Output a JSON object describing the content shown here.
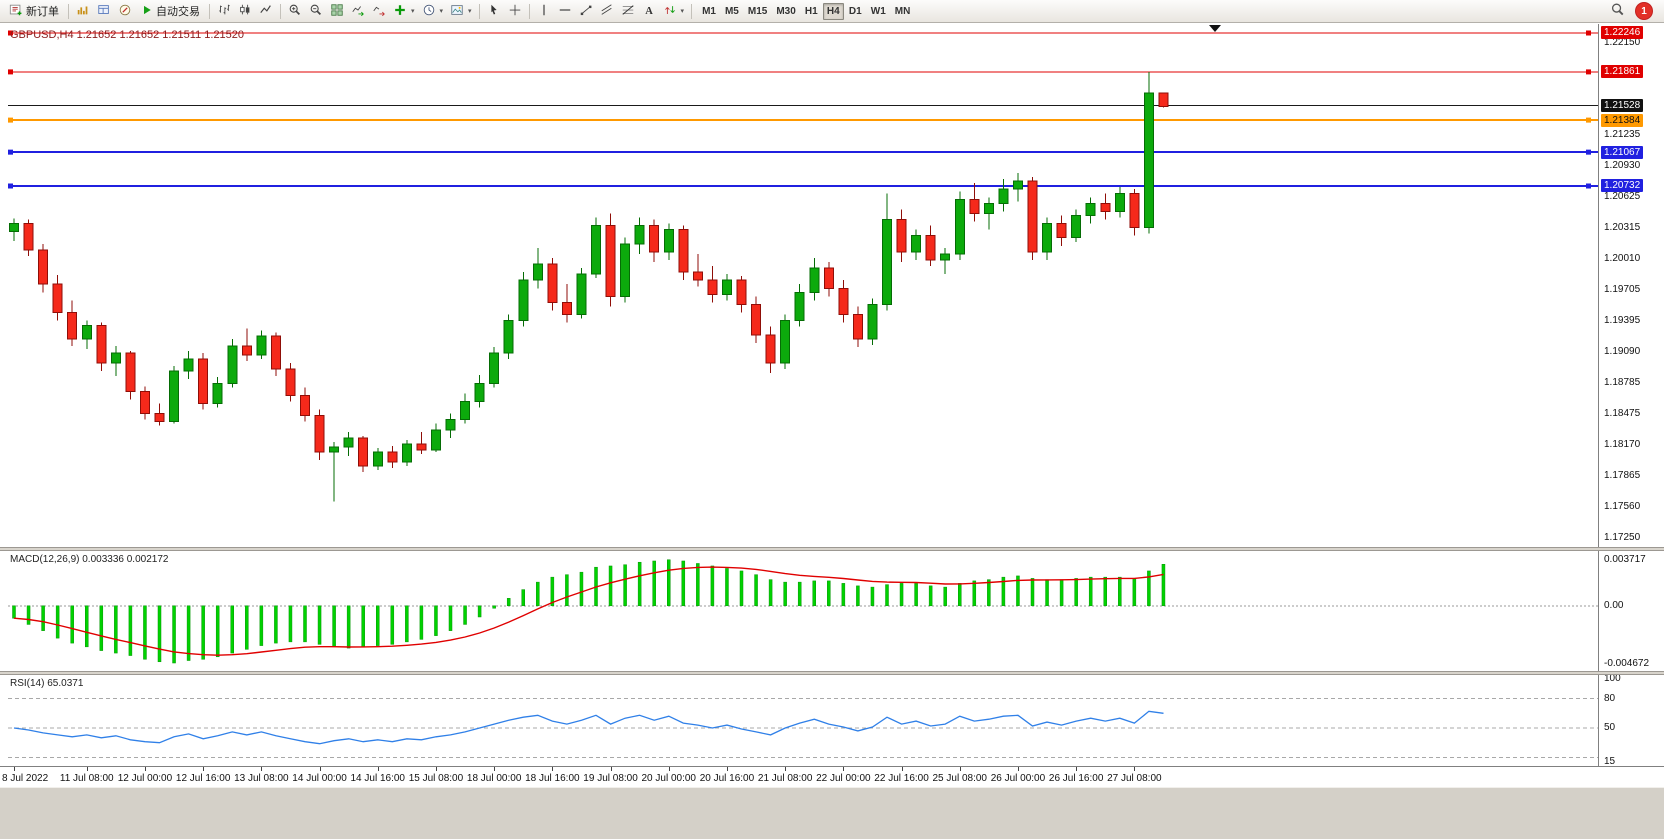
{
  "toolbar": {
    "new_order_label": "新订单",
    "autotrading_label": "自动交易",
    "timeframes": [
      "M1",
      "M5",
      "M15",
      "M30",
      "H1",
      "H4",
      "D1",
      "W1",
      "MN"
    ],
    "active_timeframe": "H4",
    "notification_count": "1"
  },
  "chart": {
    "symbol_header": "GBPUSD,H4 1.21652 1.21652 1.21511 1.21520",
    "colors": {
      "up": "#0caa0c",
      "up_border": "#056c05",
      "down": "#f5291b",
      "down_border": "#8f0e08",
      "macd_hist": "#00d200",
      "macd_signal": "#e00000",
      "rsi_line": "#3080e8",
      "line_red": "#e00000",
      "line_orange": "#ff9900",
      "line_blue": "#2020e0",
      "line_bid": "#1a1a1a"
    }
  },
  "lines": [
    {
      "price": 1.22246,
      "color": "#e00000",
      "width": 1,
      "handles": true
    },
    {
      "price": 1.21861,
      "color": "#e00000",
      "width": 1,
      "handles": true
    },
    {
      "price": 1.21528,
      "color": "#1a1a1a",
      "width": 1,
      "handles": false
    },
    {
      "price": 1.21384,
      "color": "#ff9900",
      "width": 2,
      "handles": true
    },
    {
      "price": 1.21067,
      "color": "#2020e0",
      "width": 2,
      "handles": true
    },
    {
      "price": 1.20732,
      "color": "#2020e0",
      "width": 2,
      "handles": true
    }
  ],
  "price_axis": {
    "ticks": [
      {
        "v": 1.2215,
        "label": "1.22150"
      },
      {
        "v": 1.21235,
        "label": "1.21235"
      },
      {
        "v": 1.2093,
        "label": "1.20930"
      },
      {
        "v": 1.20625,
        "label": "1.20625"
      },
      {
        "v": 1.20315,
        "label": "1.20315"
      },
      {
        "v": 1.2001,
        "label": "1.20010"
      },
      {
        "v": 1.19705,
        "label": "1.19705"
      },
      {
        "v": 1.19395,
        "label": "1.19395"
      },
      {
        "v": 1.1909,
        "label": "1.19090"
      },
      {
        "v": 1.18785,
        "label": "1.18785"
      },
      {
        "v": 1.18475,
        "label": "1.18475"
      },
      {
        "v": 1.1817,
        "label": "1.18170"
      },
      {
        "v": 1.17865,
        "label": "1.17865"
      },
      {
        "v": 1.1756,
        "label": "1.17560"
      },
      {
        "v": 1.1725,
        "label": "1.17250"
      }
    ],
    "badges": [
      {
        "v": 1.22246,
        "label": "1.22246",
        "bg": "#e00000",
        "fg": "#ffffff"
      },
      {
        "v": 1.21861,
        "label": "1.21861",
        "bg": "#e00000",
        "fg": "#ffffff"
      },
      {
        "v": 1.21528,
        "label": "1.21528",
        "bg": "#111111",
        "fg": "#ffffff"
      },
      {
        "v": 1.21384,
        "label": "1.21384",
        "bg": "#ff9900",
        "fg": "#111111"
      },
      {
        "v": 1.21067,
        "label": "1.21067",
        "bg": "#2020e0",
        "fg": "#ffffff"
      },
      {
        "v": 1.20732,
        "label": "1.20732",
        "bg": "#2020e0",
        "fg": "#ffffff"
      }
    ]
  },
  "indicators": {
    "macd": {
      "label": "MACD(12,26,9)",
      "value_main": "0.003336",
      "value_signal": "0.002172",
      "axis_labels": [
        {
          "v": 0.003717,
          "label": "0.003717"
        },
        {
          "v": 0,
          "label": "0.00"
        },
        {
          "v": -0.004672,
          "label": "-0.004672"
        }
      ]
    },
    "rsi": {
      "label": "RSI(14)",
      "value": "65.0371",
      "axis_labels": [
        {
          "v": 100,
          "label": "100"
        },
        {
          "v": 80,
          "label": "80"
        },
        {
          "v": 50,
          "label": "50"
        },
        {
          "v": 15,
          "label": "15"
        }
      ],
      "levels": [
        80,
        50,
        20
      ]
    }
  },
  "chart_data": [
    {
      "type": "candlestick",
      "symbol": "GBPUSD",
      "timeframe": "H4",
      "y_range": [
        1.1725,
        1.2235
      ],
      "ohlc": [
        [
          1.2028,
          1.2041,
          1.2019,
          1.2036
        ],
        [
          1.2036,
          1.204,
          1.2004,
          1.201
        ],
        [
          1.201,
          1.2016,
          1.1968,
          1.1976
        ],
        [
          1.1976,
          1.1985,
          1.194,
          1.1948
        ],
        [
          1.1948,
          1.196,
          1.1915,
          1.1922
        ],
        [
          1.1922,
          1.194,
          1.1912,
          1.1935
        ],
        [
          1.1935,
          1.1938,
          1.189,
          1.1898
        ],
        [
          1.1898,
          1.1915,
          1.1885,
          1.1908
        ],
        [
          1.1908,
          1.191,
          1.1862,
          1.187
        ],
        [
          1.187,
          1.1875,
          1.1842,
          1.1848
        ],
        [
          1.1848,
          1.1858,
          1.1836,
          1.184
        ],
        [
          1.184,
          1.1895,
          1.1838,
          1.189
        ],
        [
          1.189,
          1.191,
          1.1882,
          1.1902
        ],
        [
          1.1902,
          1.1908,
          1.1852,
          1.1858
        ],
        [
          1.1858,
          1.1884,
          1.1854,
          1.1878
        ],
        [
          1.1878,
          1.1922,
          1.1874,
          1.1915
        ],
        [
          1.1915,
          1.1932,
          1.19,
          1.1906
        ],
        [
          1.1906,
          1.193,
          1.1902,
          1.1925
        ],
        [
          1.1925,
          1.1928,
          1.1885,
          1.1892
        ],
        [
          1.1892,
          1.1898,
          1.186,
          1.1866
        ],
        [
          1.1866,
          1.1874,
          1.184,
          1.1846
        ],
        [
          1.1846,
          1.1852,
          1.1802,
          1.181
        ],
        [
          1.181,
          1.182,
          1.1761,
          1.1815
        ],
        [
          1.1815,
          1.183,
          1.1806,
          1.1824
        ],
        [
          1.1824,
          1.1826,
          1.179,
          1.1796
        ],
        [
          1.1796,
          1.1814,
          1.1792,
          1.181
        ],
        [
          1.181,
          1.1816,
          1.1794,
          1.18
        ],
        [
          1.18,
          1.1822,
          1.1796,
          1.1818
        ],
        [
          1.1818,
          1.183,
          1.1808,
          1.1812
        ],
        [
          1.1812,
          1.1838,
          1.181,
          1.1832
        ],
        [
          1.1832,
          1.1848,
          1.1824,
          1.1842
        ],
        [
          1.1842,
          1.1868,
          1.1838,
          1.186
        ],
        [
          1.186,
          1.1886,
          1.1854,
          1.1878
        ],
        [
          1.1878,
          1.1914,
          1.1874,
          1.1908
        ],
        [
          1.1908,
          1.1946,
          1.1902,
          1.194
        ],
        [
          1.194,
          1.1988,
          1.1934,
          1.198
        ],
        [
          1.198,
          1.2012,
          1.1972,
          1.1996
        ],
        [
          1.1996,
          1.2002,
          1.195,
          1.1958
        ],
        [
          1.1958,
          1.1976,
          1.1938,
          1.1946
        ],
        [
          1.1946,
          1.1992,
          1.1942,
          1.1986
        ],
        [
          1.1986,
          1.2042,
          1.1982,
          1.2034
        ],
        [
          1.2034,
          1.2046,
          1.1954,
          1.1964
        ],
        [
          1.1964,
          1.2022,
          1.1958,
          1.2016
        ],
        [
          1.2016,
          1.2042,
          1.2006,
          1.2034
        ],
        [
          1.2034,
          1.204,
          1.1998,
          1.2008
        ],
        [
          1.2008,
          1.2036,
          1.2,
          1.203
        ],
        [
          1.203,
          1.2034,
          1.198,
          1.1988
        ],
        [
          1.1988,
          1.2006,
          1.1974,
          1.198
        ],
        [
          1.198,
          1.1994,
          1.1958,
          1.1966
        ],
        [
          1.1966,
          1.1986,
          1.196,
          1.198
        ],
        [
          1.198,
          1.1984,
          1.1948,
          1.1956
        ],
        [
          1.1956,
          1.1964,
          1.1918,
          1.1926
        ],
        [
          1.1926,
          1.1934,
          1.1888,
          1.1898
        ],
        [
          1.1898,
          1.1946,
          1.1892,
          1.194
        ],
        [
          1.194,
          1.1976,
          1.1934,
          1.1968
        ],
        [
          1.1968,
          1.2002,
          1.196,
          1.1992
        ],
        [
          1.1992,
          1.1998,
          1.1964,
          1.1972
        ],
        [
          1.1972,
          1.198,
          1.1938,
          1.1946
        ],
        [
          1.1946,
          1.1954,
          1.1914,
          1.1922
        ],
        [
          1.1922,
          1.1962,
          1.1916,
          1.1956
        ],
        [
          1.1956,
          1.2066,
          1.195,
          1.204
        ],
        [
          1.204,
          1.205,
          1.1998,
          1.2008
        ],
        [
          1.2008,
          1.203,
          1.2,
          1.2024
        ],
        [
          1.2024,
          1.2034,
          1.1994,
          1.2
        ],
        [
          1.2,
          1.2012,
          1.1986,
          1.2006
        ],
        [
          1.2006,
          1.2068,
          1.2,
          1.206
        ],
        [
          1.206,
          1.2076,
          1.2038,
          1.2046
        ],
        [
          1.2046,
          1.2062,
          1.203,
          1.2056
        ],
        [
          1.2056,
          1.208,
          1.2048,
          1.207
        ],
        [
          1.207,
          1.2086,
          1.2058,
          1.2078
        ],
        [
          1.2078,
          1.2082,
          1.2,
          1.2008
        ],
        [
          1.2008,
          1.2042,
          1.2,
          1.2036
        ],
        [
          1.2036,
          1.2044,
          1.2014,
          1.2022
        ],
        [
          1.2022,
          1.205,
          1.2018,
          1.2044
        ],
        [
          1.2044,
          1.2062,
          1.2036,
          1.2056
        ],
        [
          1.2056,
          1.2066,
          1.204,
          1.2048
        ],
        [
          1.2048,
          1.2072,
          1.2042,
          1.2066
        ],
        [
          1.2066,
          1.207,
          1.2024,
          1.2032
        ],
        [
          1.2032,
          1.2186,
          1.2026,
          1.2165
        ],
        [
          1.21652,
          1.21652,
          1.21511,
          1.2152
        ]
      ],
      "time_ticks": [
        {
          "i": 0,
          "label": "8 Jul 2022"
        },
        {
          "i": 5,
          "label": "11 Jul 08:00"
        },
        {
          "i": 9,
          "label": "12 Jul 00:00"
        },
        {
          "i": 13,
          "label": "12 Jul 16:00"
        },
        {
          "i": 17,
          "label": "13 Jul 08:00"
        },
        {
          "i": 21,
          "label": "14 Jul 00:00"
        },
        {
          "i": 25,
          "label": "14 Jul 16:00"
        },
        {
          "i": 29,
          "label": "15 Jul 08:00"
        },
        {
          "i": 33,
          "label": "18 Jul 00:00"
        },
        {
          "i": 37,
          "label": "18 Jul 16:00"
        },
        {
          "i": 41,
          "label": "19 Jul 08:00"
        },
        {
          "i": 45,
          "label": "20 Jul 00:00"
        },
        {
          "i": 49,
          "label": "20 Jul 16:00"
        },
        {
          "i": 53,
          "label": "21 Jul 08:00"
        },
        {
          "i": 57,
          "label": "22 Jul 00:00"
        },
        {
          "i": 61,
          "label": "22 Jul 16:00"
        },
        {
          "i": 65,
          "label": "25 Jul 08:00"
        },
        {
          "i": 69,
          "label": "26 Jul 00:00"
        },
        {
          "i": 73,
          "label": "26 Jul 16:00"
        },
        {
          "i": 77,
          "label": "27 Jul 08:00"
        }
      ]
    },
    {
      "type": "bar",
      "name": "MACD(12,26,9) histogram",
      "y_range": [
        -0.004672,
        0.003717
      ],
      "values": [
        -0.001,
        -0.0015,
        -0.002,
        -0.0026,
        -0.003,
        -0.0033,
        -0.0036,
        -0.0038,
        -0.004,
        -0.0043,
        -0.0045,
        -0.0046,
        -0.0044,
        -0.0043,
        -0.0041,
        -0.0038,
        -0.0035,
        -0.0032,
        -0.003,
        -0.0029,
        -0.0029,
        -0.0031,
        -0.0033,
        -0.0034,
        -0.0033,
        -0.0032,
        -0.0031,
        -0.0029,
        -0.0027,
        -0.0024,
        -0.002,
        -0.0015,
        -0.0009,
        -0.0002,
        0.0006,
        0.0013,
        0.0019,
        0.0023,
        0.0025,
        0.0027,
        0.0031,
        0.0032,
        0.0033,
        0.0035,
        0.0036,
        0.0037,
        0.0036,
        0.0034,
        0.0032,
        0.003,
        0.0028,
        0.0025,
        0.0021,
        0.0019,
        0.0019,
        0.002,
        0.002,
        0.0018,
        0.0016,
        0.0015,
        0.0017,
        0.0018,
        0.0018,
        0.0016,
        0.0015,
        0.0018,
        0.002,
        0.0021,
        0.0023,
        0.0024,
        0.0022,
        0.0021,
        0.0021,
        0.0022,
        0.0023,
        0.0023,
        0.0023,
        0.0022,
        0.0028,
        0.003336
      ]
    },
    {
      "type": "line",
      "name": "RSI(14)",
      "y_range": [
        0,
        100
      ],
      "values": [
        50,
        48,
        45,
        43,
        41,
        43,
        40,
        42,
        38,
        36,
        35,
        41,
        44,
        39,
        42,
        46,
        43,
        46,
        42,
        39,
        36,
        34,
        37,
        39,
        36,
        38,
        36,
        39,
        38,
        41,
        43,
        46,
        50,
        54,
        58,
        61,
        63,
        57,
        54,
        58,
        63,
        54,
        60,
        63,
        58,
        62,
        55,
        53,
        50,
        53,
        49,
        46,
        43,
        50,
        55,
        59,
        54,
        51,
        47,
        51,
        61,
        54,
        57,
        52,
        54,
        62,
        57,
        59,
        62,
        63,
        52,
        56,
        53,
        57,
        60,
        57,
        60,
        55,
        67,
        65.0371
      ]
    }
  ],
  "icons": {
    "new_order": "order-ticket",
    "market_watch": "price-bars",
    "data_window": "window-panel",
    "navigator": "compass",
    "autotrading": "green-play-triangle",
    "bar_chart": "ohlc-bars",
    "candlestick_chart": "candles",
    "line_chart": "zigzag-line",
    "zoom_in": "magnifier-plus",
    "zoom_out": "magnifier-minus",
    "tile_windows": "window-grid",
    "auto_scroll": "chart-green-arrow",
    "chart_shift": "chart-red-arrow",
    "indicators_add": "green-plus",
    "periods": "clock",
    "templates": "picture",
    "cursor": "pointer-arrow",
    "crosshair": "cross",
    "vertical_line": "vertical-bar",
    "horizontal_line": "horizontal-bar",
    "trendline": "diagonal-line",
    "channel": "parallel-diagonals",
    "fibonacci": "fibo-lines",
    "text_tool": "letter-A",
    "arrow_tools": "up-down-arrows",
    "search": "magnifier",
    "notification": "red-circle-count",
    "shift_marker": "down-triangle"
  }
}
